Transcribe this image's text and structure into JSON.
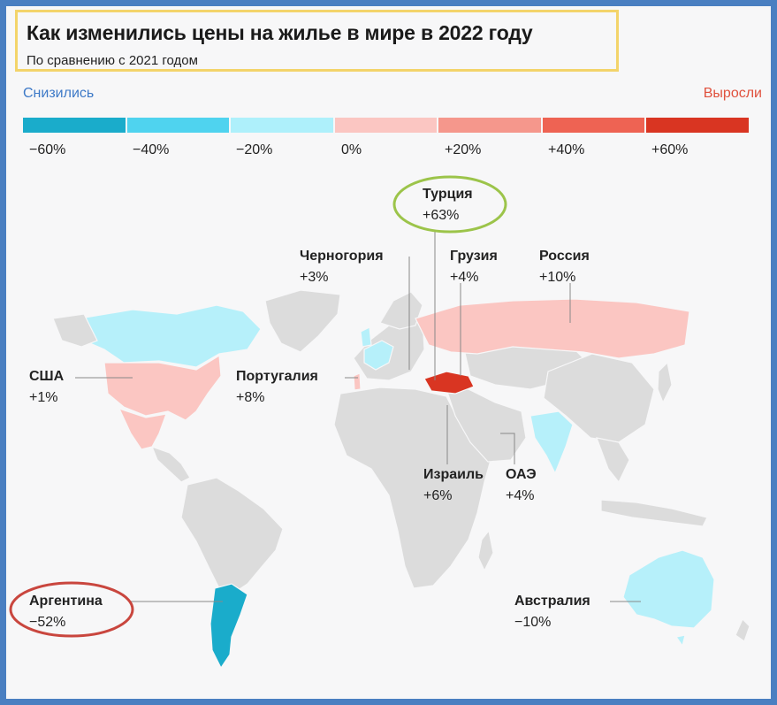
{
  "title": "Как изменились цены на жилье в мире в 2022 году",
  "subtitle": "По сравнению с 2021 годом",
  "legend": {
    "low_label": "Снизились",
    "high_label": "Выросли",
    "ticks": [
      "−60%",
      "−40%",
      "−20%",
      "0%",
      "+20%",
      "+40%",
      "+60%"
    ],
    "colors": [
      "#1aaccb",
      "#4fd3ef",
      "#aef0fb",
      "#fbc6c2",
      "#f5978c",
      "#ee6353",
      "#d93522"
    ]
  },
  "countries": {
    "turkey": {
      "name": "Турция",
      "value": "+63%"
    },
    "montenegro": {
      "name": "Черногория",
      "value": "+3%"
    },
    "georgia": {
      "name": "Грузия",
      "value": "+4%"
    },
    "russia": {
      "name": "Россия",
      "value": "+10%"
    },
    "usa": {
      "name": "США",
      "value": "+1%"
    },
    "portugal": {
      "name": "Португалия",
      "value": "+8%"
    },
    "israel": {
      "name": "Израиль",
      "value": "+6%"
    },
    "uae": {
      "name": "ОАЭ",
      "value": "+4%"
    },
    "argentina": {
      "name": "Аргентина",
      "value": "−52%"
    },
    "australia": {
      "name": "Австралия",
      "value": "−10%"
    }
  },
  "highlight_colors": {
    "turkey_circle": "#9cc44a",
    "argentina_circle": "#c9463e",
    "title_box": "#f3d46a"
  }
}
